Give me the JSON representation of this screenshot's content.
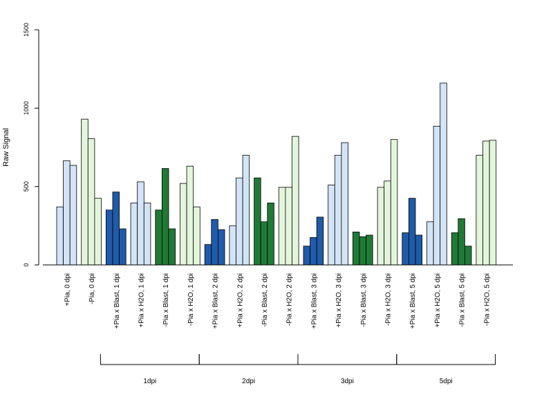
{
  "chart_data": {
    "type": "bar",
    "title": "",
    "xlabel": "",
    "ylabel": "Raw Signal",
    "ylim": [
      0,
      1500
    ],
    "yticks": [
      "0",
      "500",
      "1000",
      "1500"
    ],
    "grid": false,
    "categories": [
      "+Pia, 0 dpi",
      "-Pia, 0 dpi",
      "+Pia x Blast, 1 dpi",
      "+Pia x H2O, 1 dpi",
      "-Pia x Blast, 1 dpi",
      "-Pia x H2O, 1 dpi",
      "+Pia x Blast, 2 dpi",
      "+Pia x H2O, 2 dpi",
      "-Pia x Blast, 2 dpi",
      "-Pia x H2O, 2 dpi",
      "+Pia x Blast, 3 dpi",
      "+Pia x H2O, 3 dpi",
      "-Pia x Blast, 3 dpi",
      "-Pia x H2O, 3 dpi",
      "+Pia x Blast, 5 dpi",
      "+Pia x H2O, 5 dpi",
      "-Pia x Blast, 5 dpi",
      "-Pia x H2O, 5 dpi"
    ],
    "colors": [
      "#d2e4f6",
      "#e3f6dc",
      "#1f5ba9",
      "#d2e4f6",
      "#207a36",
      "#e3f6dc",
      "#1f5ba9",
      "#d2e4f6",
      "#207a36",
      "#e3f6dc",
      "#1f5ba9",
      "#d2e4f6",
      "#207a36",
      "#e3f6dc",
      "#1f5ba9",
      "#d2e4f6",
      "#207a36",
      "#e3f6dc"
    ],
    "values": [
      [
        370,
        665,
        635
      ],
      [
        930,
        805,
        425
      ],
      [
        350,
        465,
        230
      ],
      [
        395,
        530,
        395
      ],
      [
        350,
        615,
        230
      ],
      [
        520,
        630,
        370
      ],
      [
        130,
        290,
        225
      ],
      [
        250,
        555,
        700
      ],
      [
        555,
        275,
        395
      ],
      [
        495,
        495,
        820
      ],
      [
        120,
        175,
        305
      ],
      [
        510,
        700,
        780
      ],
      [
        210,
        180,
        190
      ],
      [
        495,
        535,
        800
      ],
      [
        205,
        425,
        190
      ],
      [
        275,
        885,
        1160
      ],
      [
        205,
        295,
        120
      ],
      [
        700,
        790,
        795
      ]
    ],
    "groups": [
      {
        "label": "1dpi",
        "from": 2,
        "to": 5
      },
      {
        "label": "2dpi",
        "from": 6,
        "to": 9
      },
      {
        "label": "3dpi",
        "from": 10,
        "to": 13
      },
      {
        "label": "5dpi",
        "from": 14,
        "to": 17
      }
    ]
  }
}
